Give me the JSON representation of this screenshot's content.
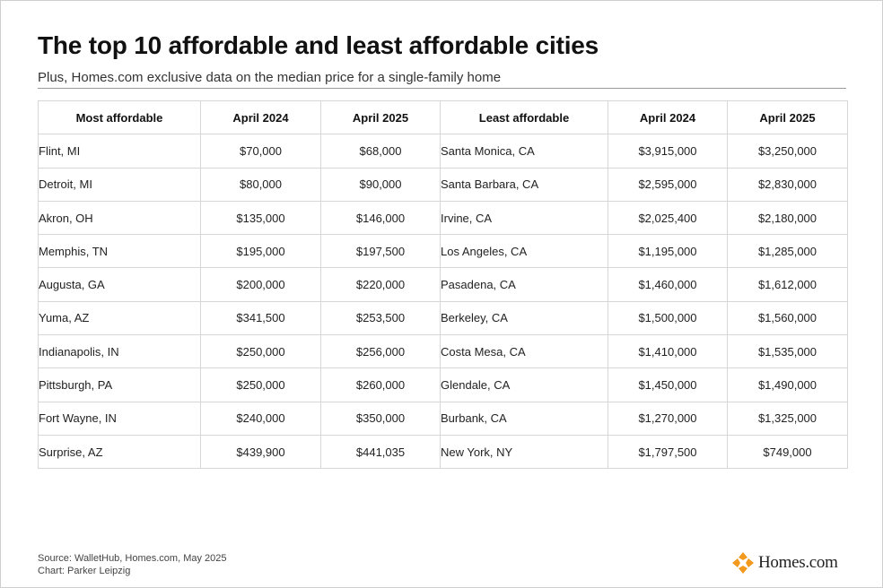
{
  "header": {
    "title": "The top 10 affordable and least affordable cities",
    "subtitle": "Plus, Homes.com exclusive data on the median price for a single-family home"
  },
  "chart_data": {
    "type": "table",
    "columns": [
      "Most affordable",
      "April 2024",
      "April 2025",
      "Least affordable",
      "April 2024",
      "April 2025"
    ],
    "rows": [
      [
        "Flint, MI",
        "$70,000",
        "$68,000",
        "Santa Monica, CA",
        "$3,915,000",
        "$3,250,000"
      ],
      [
        "Detroit, MI",
        "$80,000",
        "$90,000",
        "Santa Barbara, CA",
        "$2,595,000",
        "$2,830,000"
      ],
      [
        "Akron, OH",
        "$135,000",
        "$146,000",
        "Irvine, CA",
        "$2,025,400",
        "$2,180,000"
      ],
      [
        "Memphis, TN",
        "$195,000",
        "$197,500",
        "Los Angeles, CA",
        "$1,195,000",
        "$1,285,000"
      ],
      [
        "Augusta, GA",
        "$200,000",
        "$220,000",
        "Pasadena, CA",
        "$1,460,000",
        "$1,612,000"
      ],
      [
        "Yuma, AZ",
        "$341,500",
        "$253,500",
        "Berkeley, CA",
        "$1,500,000",
        "$1,560,000"
      ],
      [
        "Indianapolis, IN",
        "$250,000",
        "$256,000",
        "Costa Mesa, CA",
        "$1,410,000",
        "$1,535,000"
      ],
      [
        "Pittsburgh, PA",
        "$250,000",
        "$260,000",
        "Glendale, CA",
        "$1,450,000",
        "$1,490,000"
      ],
      [
        "Fort Wayne, IN",
        "$240,000",
        "$350,000",
        "Burbank, CA",
        "$1,270,000",
        "$1,325,000"
      ],
      [
        "Surprise, AZ",
        "$439,900",
        "$441,035",
        "New York, NY",
        "$1,797,500",
        "$749,000"
      ]
    ],
    "header_colors": {
      "most_affordable": "#d24a1e",
      "least_affordable": "#1f4f9b"
    }
  },
  "footer": {
    "source": "Source: WalletHub, Homes.com, May 2025",
    "credit": "Chart: Parker Leipzig"
  },
  "logo": {
    "text": "Homes.com",
    "icon": "homes-com-logo-icon",
    "color": "#f39a1e"
  }
}
